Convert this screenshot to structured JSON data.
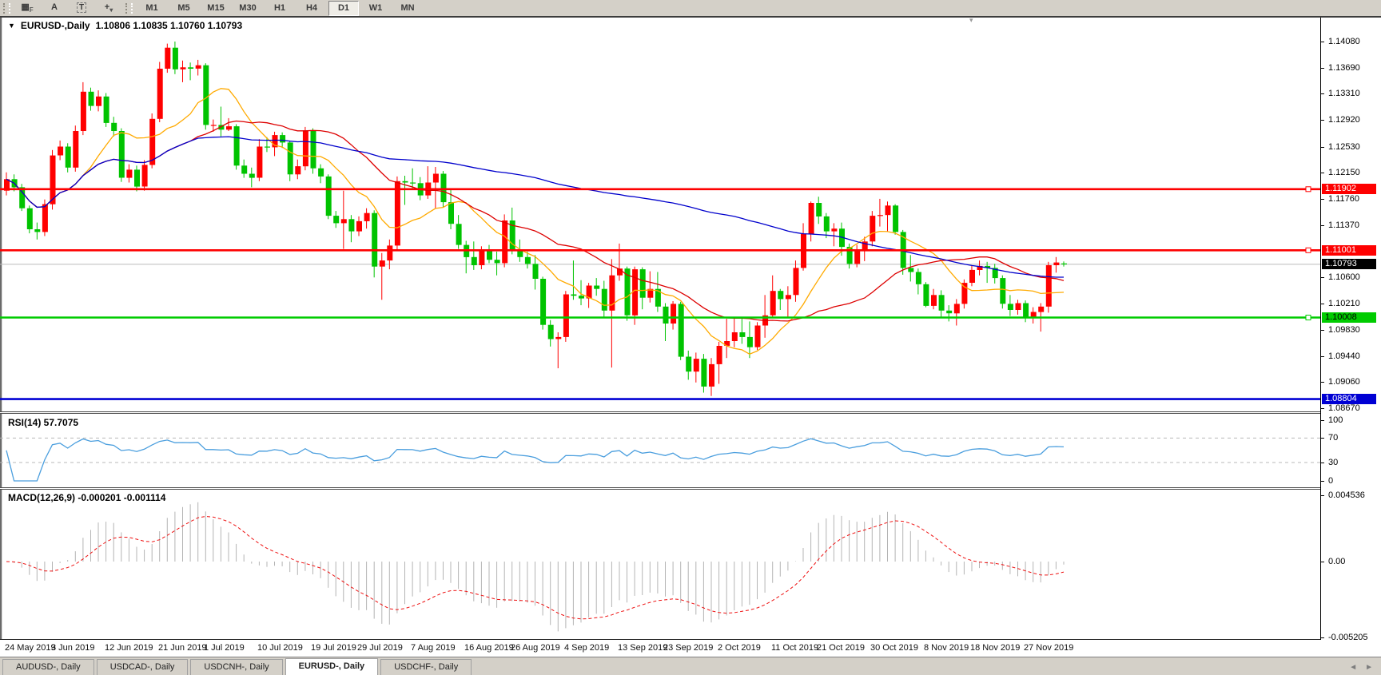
{
  "toolbar": {
    "tools": [
      {
        "name": "grid-icon",
        "glyph": "▦",
        "sub": "F",
        "boxed": false
      },
      {
        "name": "font-icon",
        "glyph": "A",
        "sub": "",
        "boxed": false
      },
      {
        "name": "text-label-icon",
        "glyph": "T",
        "sub": "",
        "boxed": true
      },
      {
        "name": "crosshair-icon",
        "glyph": "+",
        "sub": "▾",
        "boxed": false
      }
    ],
    "timeframes": [
      "M1",
      "M5",
      "M15",
      "M30",
      "H1",
      "H4",
      "D1",
      "W1",
      "MN"
    ],
    "active_timeframe": "D1"
  },
  "chart": {
    "title": {
      "dropdown": "▼",
      "symbol": "EURUSD-,Daily",
      "ohlc": "1.10806 1.10835 1.10760 1.10793"
    },
    "shift_marker": "▾",
    "colors": {
      "bull": "#ff0000",
      "bear": "#00c300",
      "ma_fast": "#ffaa00",
      "ma_mid": "#dd0000",
      "ma_slow": "#0000cc",
      "current_line": "#bbbbbb"
    },
    "hlines": [
      {
        "name": "resistance-line-upper",
        "price": 1.11902,
        "label": "1.11902",
        "color": "#fe0000",
        "text": "#ffffff",
        "handle": true
      },
      {
        "name": "resistance-line-lower",
        "price": 1.11001,
        "label": "1.11001",
        "color": "#fe0000",
        "text": "#ffffff",
        "handle": true
      },
      {
        "name": "support-line-green",
        "price": 1.10008,
        "label": "1.10008",
        "color": "#00cc00",
        "text": "#000000",
        "handle": true
      },
      {
        "name": "support-line-blue",
        "price": 1.08804,
        "label": "1.08804",
        "color": "#0000d4",
        "text": "#ffffff",
        "handle": false
      }
    ],
    "current_price": {
      "price": 1.10793,
      "label": "1.10793",
      "bg": "#000000",
      "text": "#ffffff"
    }
  },
  "chart_data": {
    "type": "candlestick",
    "symbol": "EURUSD-",
    "timeframe": "Daily",
    "current_ohlc": {
      "open": 1.10806,
      "high": 1.10835,
      "low": 1.1076,
      "close": 1.10793
    },
    "price_ticks": [
      "1.14080",
      "1.13690",
      "1.13310",
      "1.12920",
      "1.12530",
      "1.12150",
      "1.11760",
      "1.11370",
      "1.10600",
      "1.10210",
      "1.09830",
      "1.09440",
      "1.09060",
      "1.08670"
    ],
    "moving_averages": [
      {
        "name": "ma-fast",
        "period": 10,
        "color": "#ffaa00"
      },
      {
        "name": "ma-mid",
        "period": 25,
        "color": "#dd0000"
      },
      {
        "name": "ma-slow",
        "period": 90,
        "color": "#0000cc"
      }
    ],
    "x_labels": [
      {
        "text": "24 May 2019",
        "i": 0
      },
      {
        "text": "3 Jun 2019",
        "i": 6
      },
      {
        "text": "12 Jun 2019",
        "i": 13
      },
      {
        "text": "21 Jun 2019",
        "i": 20
      },
      {
        "text": "1 Jul 2019",
        "i": 26
      },
      {
        "text": "10 Jul 2019",
        "i": 33
      },
      {
        "text": "19 Jul 2019",
        "i": 40
      },
      {
        "text": "29 Jul 2019",
        "i": 46
      },
      {
        "text": "7 Aug 2019",
        "i": 53
      },
      {
        "text": "16 Aug 2019",
        "i": 60
      },
      {
        "text": "26 Aug 2019",
        "i": 66
      },
      {
        "text": "4 Sep 2019",
        "i": 73
      },
      {
        "text": "13 Sep 2019",
        "i": 80
      },
      {
        "text": "23 Sep 2019",
        "i": 86
      },
      {
        "text": "2 Oct 2019",
        "i": 93
      },
      {
        "text": "11 Oct 2019",
        "i": 100
      },
      {
        "text": "21 Oct 2019",
        "i": 106
      },
      {
        "text": "30 Oct 2019",
        "i": 113
      },
      {
        "text": "8 Nov 2019",
        "i": 120
      },
      {
        "text": "18 Nov 2019",
        "i": 126
      },
      {
        "text": "27 Nov 2019",
        "i": 133
      }
    ],
    "candles": [
      [
        1.1188,
        1.1215,
        1.1181,
        1.1205
      ],
      [
        1.1205,
        1.1212,
        1.1187,
        1.1193
      ],
      [
        1.1193,
        1.1198,
        1.1158,
        1.1162
      ],
      [
        1.1162,
        1.1166,
        1.1125,
        1.1131
      ],
      [
        1.1131,
        1.1141,
        1.1116,
        1.1127
      ],
      [
        1.1127,
        1.1175,
        1.1121,
        1.1168
      ],
      [
        1.1168,
        1.1248,
        1.116,
        1.124
      ],
      [
        1.124,
        1.1262,
        1.1233,
        1.1253
      ],
      [
        1.1253,
        1.1258,
        1.1215,
        1.1222
      ],
      [
        1.1222,
        1.1284,
        1.1216,
        1.1276
      ],
      [
        1.1276,
        1.1348,
        1.127,
        1.1334
      ],
      [
        1.1334,
        1.134,
        1.1306,
        1.1313
      ],
      [
        1.1313,
        1.1336,
        1.1305,
        1.1327
      ],
      [
        1.1327,
        1.1332,
        1.1282,
        1.1288
      ],
      [
        1.1288,
        1.1297,
        1.1268,
        1.1276
      ],
      [
        1.1276,
        1.128,
        1.1201,
        1.1207
      ],
      [
        1.1207,
        1.1227,
        1.12,
        1.1219
      ],
      [
        1.1219,
        1.1225,
        1.1187,
        1.1194
      ],
      [
        1.1194,
        1.1233,
        1.1188,
        1.1226
      ],
      [
        1.1226,
        1.1302,
        1.1221,
        1.1294
      ],
      [
        1.1294,
        1.1378,
        1.1289,
        1.1368
      ],
      [
        1.1368,
        1.1405,
        1.1362,
        1.1399
      ],
      [
        1.1399,
        1.1408,
        1.136,
        1.1367
      ],
      [
        1.1367,
        1.138,
        1.1348,
        1.137
      ],
      [
        1.137,
        1.1377,
        1.1351,
        1.1368
      ],
      [
        1.1368,
        1.1381,
        1.1358,
        1.1373
      ],
      [
        1.1373,
        1.1376,
        1.1278,
        1.1285
      ],
      [
        1.1285,
        1.1293,
        1.1275,
        1.1285
      ],
      [
        1.1285,
        1.1312,
        1.1268,
        1.1278
      ],
      [
        1.1278,
        1.1295,
        1.1276,
        1.1283
      ],
      [
        1.1283,
        1.1286,
        1.1219,
        1.1225
      ],
      [
        1.1225,
        1.1234,
        1.1207,
        1.1213
      ],
      [
        1.1213,
        1.1222,
        1.1193,
        1.1207
      ],
      [
        1.1207,
        1.1264,
        1.1202,
        1.1253
      ],
      [
        1.1253,
        1.1267,
        1.1245,
        1.1252
      ],
      [
        1.1252,
        1.1275,
        1.1239,
        1.127
      ],
      [
        1.127,
        1.1274,
        1.1251,
        1.1259
      ],
      [
        1.1259,
        1.1262,
        1.1202,
        1.1212
      ],
      [
        1.1212,
        1.1234,
        1.1205,
        1.1224
      ],
      [
        1.1224,
        1.1282,
        1.1218,
        1.1277
      ],
      [
        1.1277,
        1.128,
        1.1213,
        1.1221
      ],
      [
        1.1221,
        1.1227,
        1.1199,
        1.1209
      ],
      [
        1.1209,
        1.1212,
        1.1146,
        1.1151
      ],
      [
        1.1151,
        1.1158,
        1.1133,
        1.114
      ],
      [
        1.114,
        1.1188,
        1.1102,
        1.1146
      ],
      [
        1.1146,
        1.1152,
        1.1112,
        1.1128
      ],
      [
        1.1128,
        1.115,
        1.1121,
        1.1143
      ],
      [
        1.1143,
        1.1162,
        1.1132,
        1.1155
      ],
      [
        1.1155,
        1.1159,
        1.106,
        1.1076
      ],
      [
        1.1076,
        1.1096,
        1.1027,
        1.1085
      ],
      [
        1.1085,
        1.1116,
        1.1072,
        1.1107
      ],
      [
        1.1107,
        1.1209,
        1.1101,
        1.1202
      ],
      [
        1.1202,
        1.121,
        1.1167,
        1.12
      ],
      [
        1.12,
        1.1221,
        1.1189,
        1.1199
      ],
      [
        1.1199,
        1.1208,
        1.1174,
        1.1181
      ],
      [
        1.1181,
        1.1224,
        1.1176,
        1.12
      ],
      [
        1.12,
        1.1223,
        1.1162,
        1.1213
      ],
      [
        1.1213,
        1.1217,
        1.1163,
        1.1171
      ],
      [
        1.1171,
        1.119,
        1.1131,
        1.1139
      ],
      [
        1.1139,
        1.1152,
        1.1102,
        1.1108
      ],
      [
        1.1108,
        1.1114,
        1.1066,
        1.109
      ],
      [
        1.109,
        1.1113,
        1.1071,
        1.1078
      ],
      [
        1.1078,
        1.1106,
        1.1072,
        1.1099
      ],
      [
        1.1099,
        1.1108,
        1.1081,
        1.1086
      ],
      [
        1.1086,
        1.1098,
        1.1063,
        1.1081
      ],
      [
        1.1081,
        1.1153,
        1.1075,
        1.1144
      ],
      [
        1.1144,
        1.1163,
        1.1094,
        1.1101
      ],
      [
        1.1101,
        1.1116,
        1.1083,
        1.109
      ],
      [
        1.109,
        1.1098,
        1.1073,
        1.108
      ],
      [
        1.108,
        1.1093,
        1.1042,
        1.1058
      ],
      [
        1.1058,
        1.1061,
        1.0983,
        1.099
      ],
      [
        1.099,
        1.0997,
        1.0958,
        1.0969
      ],
      [
        1.0969,
        1.0979,
        1.0926,
        1.0972
      ],
      [
        1.0972,
        1.104,
        1.0965,
        1.1035
      ],
      [
        1.1035,
        1.1085,
        1.1027,
        1.1033
      ],
      [
        1.1033,
        1.1056,
        1.1019,
        1.1029
      ],
      [
        1.1029,
        1.1052,
        1.1015,
        1.1048
      ],
      [
        1.1048,
        1.1059,
        1.1033,
        1.1043
      ],
      [
        1.1043,
        1.1055,
        1.1001,
        1.1011
      ],
      [
        1.1011,
        1.1087,
        1.0927,
        1.1063
      ],
      [
        1.1063,
        1.111,
        1.1055,
        1.1073
      ],
      [
        1.1073,
        1.1076,
        1.0996,
        1.1004
      ],
      [
        1.1004,
        1.1076,
        1.099,
        1.1072
      ],
      [
        1.1072,
        1.1075,
        1.1013,
        1.103
      ],
      [
        1.103,
        1.1069,
        1.1023,
        1.1043
      ],
      [
        1.1043,
        1.1068,
        1.1009,
        1.1017
      ],
      [
        1.1017,
        1.1022,
        1.0966,
        1.0992
      ],
      [
        1.0992,
        1.1025,
        1.0983,
        1.1021
      ],
      [
        1.1021,
        1.1024,
        1.0938,
        1.0943
      ],
      [
        1.0943,
        1.0952,
        1.0909,
        1.0921
      ],
      [
        1.0921,
        1.0949,
        1.0905,
        1.094
      ],
      [
        1.094,
        1.0947,
        1.089,
        1.0899
      ],
      [
        1.0899,
        1.0941,
        1.0885,
        1.0932
      ],
      [
        1.0932,
        1.0965,
        1.0903,
        1.0959
      ],
      [
        1.0959,
        1.0999,
        1.0941,
        1.0966
      ],
      [
        1.0966,
        1.0999,
        1.0957,
        1.0979
      ],
      [
        1.0979,
        1.1,
        1.0962,
        1.0972
      ],
      [
        1.0972,
        1.0995,
        1.0941,
        1.0957
      ],
      [
        1.0957,
        1.0994,
        1.0953,
        1.0989
      ],
      [
        1.0989,
        1.1034,
        1.0971,
        1.1004
      ],
      [
        1.1004,
        1.1063,
        1.1002,
        1.104
      ],
      [
        1.104,
        1.1043,
        1.1012,
        1.1028
      ],
      [
        1.1028,
        1.1047,
        1.1001,
        1.1034
      ],
      [
        1.1034,
        1.1085,
        1.1024,
        1.1074
      ],
      [
        1.1074,
        1.114,
        1.107,
        1.1124
      ],
      [
        1.1124,
        1.1172,
        1.1113,
        1.117
      ],
      [
        1.117,
        1.1179,
        1.1139,
        1.115
      ],
      [
        1.115,
        1.1155,
        1.1118,
        1.1128
      ],
      [
        1.1128,
        1.114,
        1.1106,
        1.1132
      ],
      [
        1.1132,
        1.1141,
        1.1092,
        1.1105
      ],
      [
        1.1105,
        1.111,
        1.1073,
        1.108
      ],
      [
        1.108,
        1.1108,
        1.1075,
        1.1099
      ],
      [
        1.1099,
        1.112,
        1.1084,
        1.1113
      ],
      [
        1.1113,
        1.1158,
        1.1106,
        1.1151
      ],
      [
        1.1151,
        1.1176,
        1.1135,
        1.1152
      ],
      [
        1.1152,
        1.1172,
        1.1128,
        1.1166
      ],
      [
        1.1166,
        1.1168,
        1.1123,
        1.1127
      ],
      [
        1.1127,
        1.113,
        1.1064,
        1.1074
      ],
      [
        1.1074,
        1.1093,
        1.1054,
        1.1068
      ],
      [
        1.1068,
        1.1073,
        1.1035,
        1.105
      ],
      [
        1.105,
        1.1053,
        1.1016,
        1.1018
      ],
      [
        1.1018,
        1.1043,
        1.1013,
        1.1034
      ],
      [
        1.1034,
        1.1041,
        1.1002,
        1.1011
      ],
      [
        1.1011,
        1.1019,
        1.0995,
        1.1007
      ],
      [
        1.1007,
        1.1028,
        1.0989,
        1.1021
      ],
      [
        1.1021,
        1.1057,
        1.1014,
        1.1052
      ],
      [
        1.1052,
        1.1077,
        1.1047,
        1.1071
      ],
      [
        1.1071,
        1.1085,
        1.1063,
        1.1077
      ],
      [
        1.1077,
        1.1083,
        1.1052,
        1.1074
      ],
      [
        1.1074,
        1.108,
        1.1051,
        1.1059
      ],
      [
        1.1059,
        1.1063,
        1.1014,
        1.1021
      ],
      [
        1.1021,
        1.1034,
        1.1003,
        1.1012
      ],
      [
        1.1012,
        1.1027,
        1.1005,
        1.1022
      ],
      [
        1.1022,
        1.1026,
        1.0994,
        1.1001
      ],
      [
        1.1001,
        1.1016,
        1.0992,
        1.1009
      ],
      [
        1.1009,
        1.1022,
        1.098,
        1.1017
      ],
      [
        1.1017,
        1.1083,
        1.1008,
        1.1078
      ],
      [
        1.1078,
        1.109,
        1.1067,
        1.1082
      ],
      [
        1.10806,
        1.10835,
        1.1076,
        1.10793
      ]
    ]
  },
  "rsi": {
    "label": "RSI(14) 57.7075",
    "period": 14,
    "value": 57.7075,
    "levels": [
      70,
      30
    ],
    "axis_labels": [
      {
        "text": "100",
        "v": 100
      },
      {
        "text": "70",
        "v": 70
      },
      {
        "text": "30",
        "v": 30
      },
      {
        "text": "0",
        "v": 0
      }
    ],
    "color": "#4a9ede",
    "level_color": "#b8b8b8"
  },
  "macd": {
    "label": "MACD(12,26,9) -0.000201 -0.001114",
    "fast": 12,
    "slow": 26,
    "signal": 9,
    "macd_value": -0.000201,
    "signal_value": -0.001114,
    "axis_labels": [
      {
        "text": "0.004536",
        "v": 0.004536
      },
      {
        "text": "0.00",
        "v": 0
      },
      {
        "text": "-0.005205",
        "v": -0.005205
      }
    ],
    "hist_color": "#b4b4b4",
    "signal_color": "#ee1111"
  },
  "tabs": {
    "items": [
      "AUDUSD-, Daily",
      "USDCAD-, Daily",
      "USDCNH-, Daily",
      "EURUSD-, Daily",
      "USDCHF-, Daily"
    ],
    "active": "EURUSD-, Daily",
    "nav_left": "◄",
    "nav_right": "►"
  }
}
